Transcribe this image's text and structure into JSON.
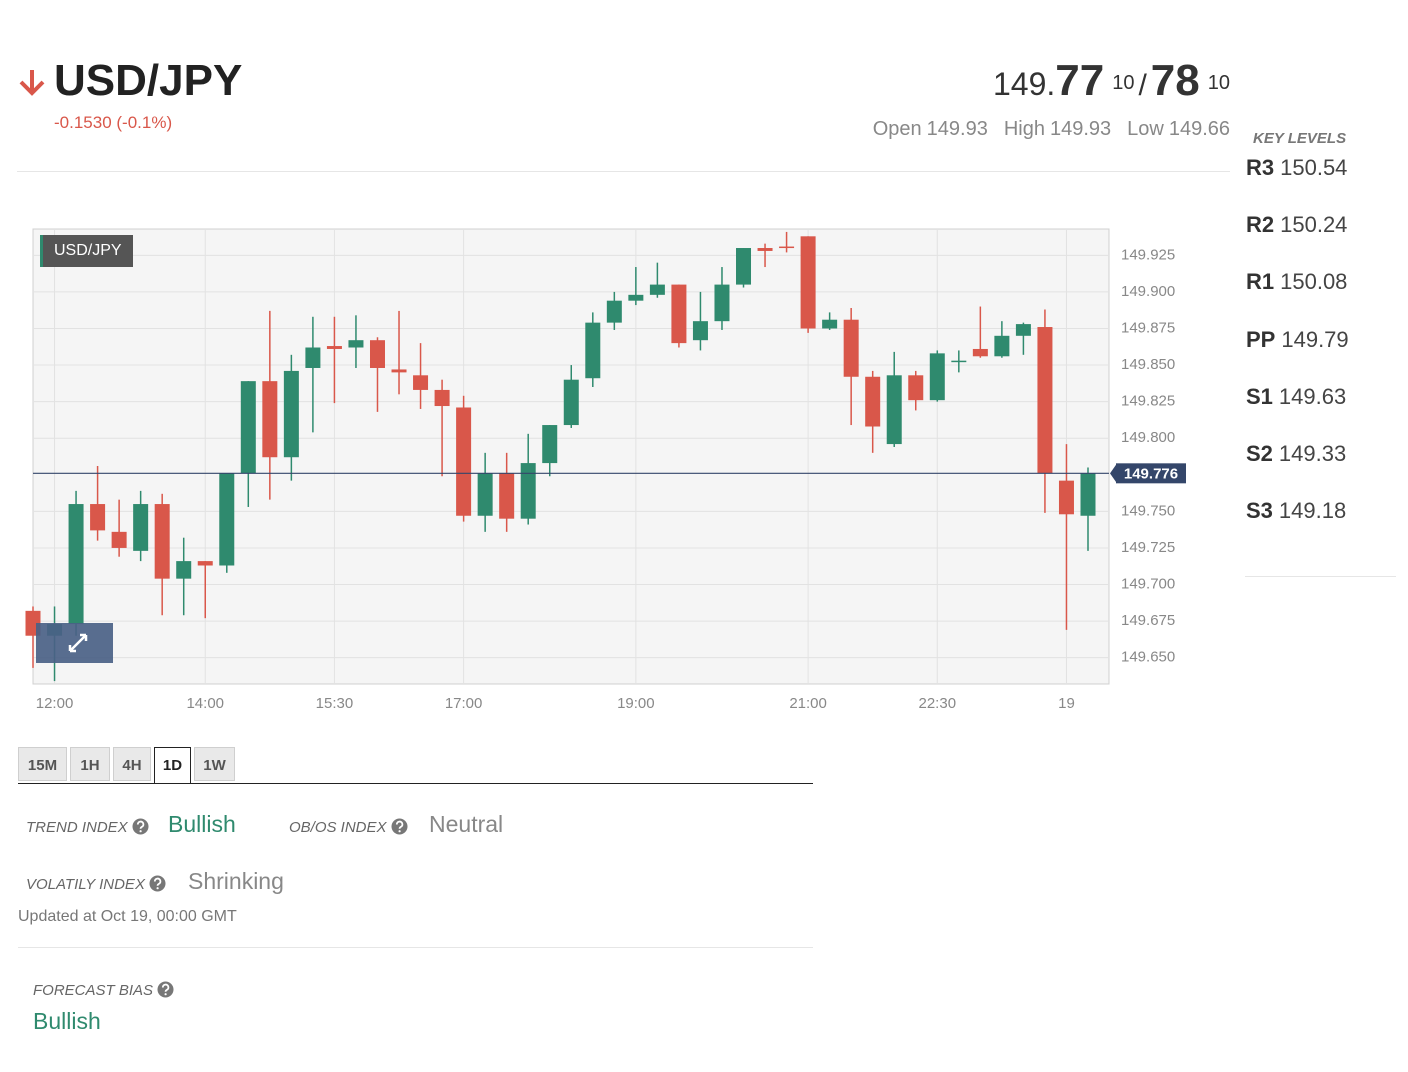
{
  "header": {
    "symbol": "USD/JPY",
    "change": "-0.1530 (-0.1%)",
    "bid_prefix": "149.",
    "bid_main": "77",
    "bid_pip": "10",
    "separator": "/",
    "ask_main": "78",
    "ask_pip": "10",
    "stats": [
      {
        "label": "Open",
        "value": 149.93
      },
      {
        "label": "High",
        "value": 149.93
      },
      {
        "label": "Low",
        "value": 149.66
      }
    ]
  },
  "key_levels": {
    "title": "KEY LEVELS",
    "items": [
      {
        "label": "R3",
        "value": 150.54
      },
      {
        "label": "R2",
        "value": 150.24
      },
      {
        "label": "R1",
        "value": 150.08
      },
      {
        "label": "PP",
        "value": 149.79
      },
      {
        "label": "S1",
        "value": 149.63
      },
      {
        "label": "S2",
        "value": 149.33
      },
      {
        "label": "S3",
        "value": 149.18
      }
    ]
  },
  "chart_data": {
    "type": "candlestick",
    "label": "USD/JPY",
    "up_color": "#2f8a6e",
    "down_color": "#d9574a",
    "grid": true,
    "categories": [
      null,
      "12:00",
      null,
      null,
      null,
      null,
      null,
      null,
      "14:00",
      null,
      null,
      null,
      null,
      null,
      "15:30",
      null,
      null,
      null,
      null,
      null,
      "17:00",
      null,
      null,
      null,
      null,
      null,
      null,
      null,
      "19:00",
      null,
      null,
      null,
      null,
      null,
      null,
      null,
      "21:00",
      null,
      null,
      null,
      null,
      null,
      "22:30",
      null,
      null,
      null,
      null,
      null,
      "19",
      null
    ],
    "open": [
      149.682,
      149.665,
      149.673,
      149.755,
      149.736,
      149.723,
      149.755,
      149.704,
      149.716,
      149.713,
      149.776,
      149.839,
      149.787,
      149.848,
      149.863,
      149.862,
      149.867,
      149.847,
      149.843,
      149.833,
      149.821,
      149.747,
      149.776,
      149.745,
      149.783,
      149.809,
      149.841,
      149.879,
      149.894,
      149.898,
      149.905,
      149.867,
      149.88,
      149.905,
      149.93,
      149.931,
      149.938,
      149.875,
      149.881,
      149.842,
      149.796,
      149.843,
      149.826,
      149.853,
      149.861,
      149.856,
      149.87,
      149.876,
      149.771,
      149.747
    ],
    "high": [
      149.685,
      149.685,
      149.764,
      149.781,
      149.758,
      149.764,
      149.762,
      149.732,
      149.716,
      149.776,
      149.839,
      149.887,
      149.857,
      149.883,
      149.883,
      149.884,
      149.869,
      149.887,
      149.865,
      149.84,
      149.829,
      149.79,
      149.79,
      149.803,
      149.809,
      149.85,
      149.886,
      149.9,
      149.917,
      149.92,
      149.905,
      149.9,
      149.917,
      149.93,
      149.933,
      149.941,
      149.938,
      149.886,
      149.889,
      149.846,
      149.859,
      149.846,
      149.86,
      149.86,
      149.89,
      149.88,
      149.879,
      149.888,
      149.796,
      149.78
    ],
    "low": [
      149.643,
      149.634,
      149.665,
      149.73,
      149.719,
      149.716,
      149.679,
      149.679,
      149.677,
      149.708,
      149.753,
      149.758,
      149.771,
      149.804,
      149.824,
      149.848,
      149.818,
      149.83,
      149.82,
      149.774,
      149.743,
      149.736,
      149.736,
      149.741,
      149.774,
      149.807,
      149.835,
      149.874,
      149.891,
      149.896,
      149.862,
      149.86,
      149.874,
      149.903,
      149.917,
      149.927,
      149.872,
      149.874,
      149.809,
      149.79,
      149.794,
      149.819,
      149.825,
      149.845,
      149.855,
      149.855,
      149.857,
      149.749,
      149.669,
      149.723
    ],
    "close": [
      149.665,
      149.673,
      149.755,
      149.737,
      149.725,
      149.755,
      149.704,
      149.716,
      149.713,
      149.776,
      149.839,
      149.787,
      149.846,
      149.862,
      149.861,
      149.867,
      149.848,
      149.845,
      149.833,
      149.822,
      149.747,
      149.776,
      149.745,
      149.783,
      149.809,
      149.84,
      149.879,
      149.894,
      149.898,
      149.905,
      149.865,
      149.88,
      149.905,
      149.93,
      149.928,
      149.93,
      149.875,
      149.881,
      149.842,
      149.808,
      149.843,
      149.826,
      149.858,
      149.853,
      149.856,
      149.87,
      149.878,
      149.776,
      149.748,
      149.776
    ],
    "last": 149.776,
    "ylim": [
      149.632,
      149.943
    ],
    "yticks": [
      {
        "value": 149.65,
        "label": "149.650"
      },
      149.675,
      {
        "value": 149.7,
        "label": "149.700"
      },
      149.725,
      {
        "value": 149.75,
        "label": "149.750"
      },
      {
        "value": 149.8,
        "label": "149.800"
      },
      149.825,
      {
        "value": 149.85,
        "label": "149.850"
      },
      149.875,
      {
        "value": 149.9,
        "label": "149.900"
      },
      149.925
    ]
  },
  "tabs": [
    "15M",
    "1H",
    "4H",
    "1D",
    "1W"
  ],
  "indices": {
    "trend_label": "TREND INDEX",
    "trend_value": "Bullish",
    "obos_label": "OB/OS INDEX",
    "obos_value": "Neutral",
    "volatility_label": "VOLATILY INDEX",
    "volatility_value": "Shrinking",
    "updated": "Updated at Oct 19, 00:00 GMT"
  },
  "forecast": {
    "label": "FORECAST BIAS",
    "value": "Bullish"
  }
}
